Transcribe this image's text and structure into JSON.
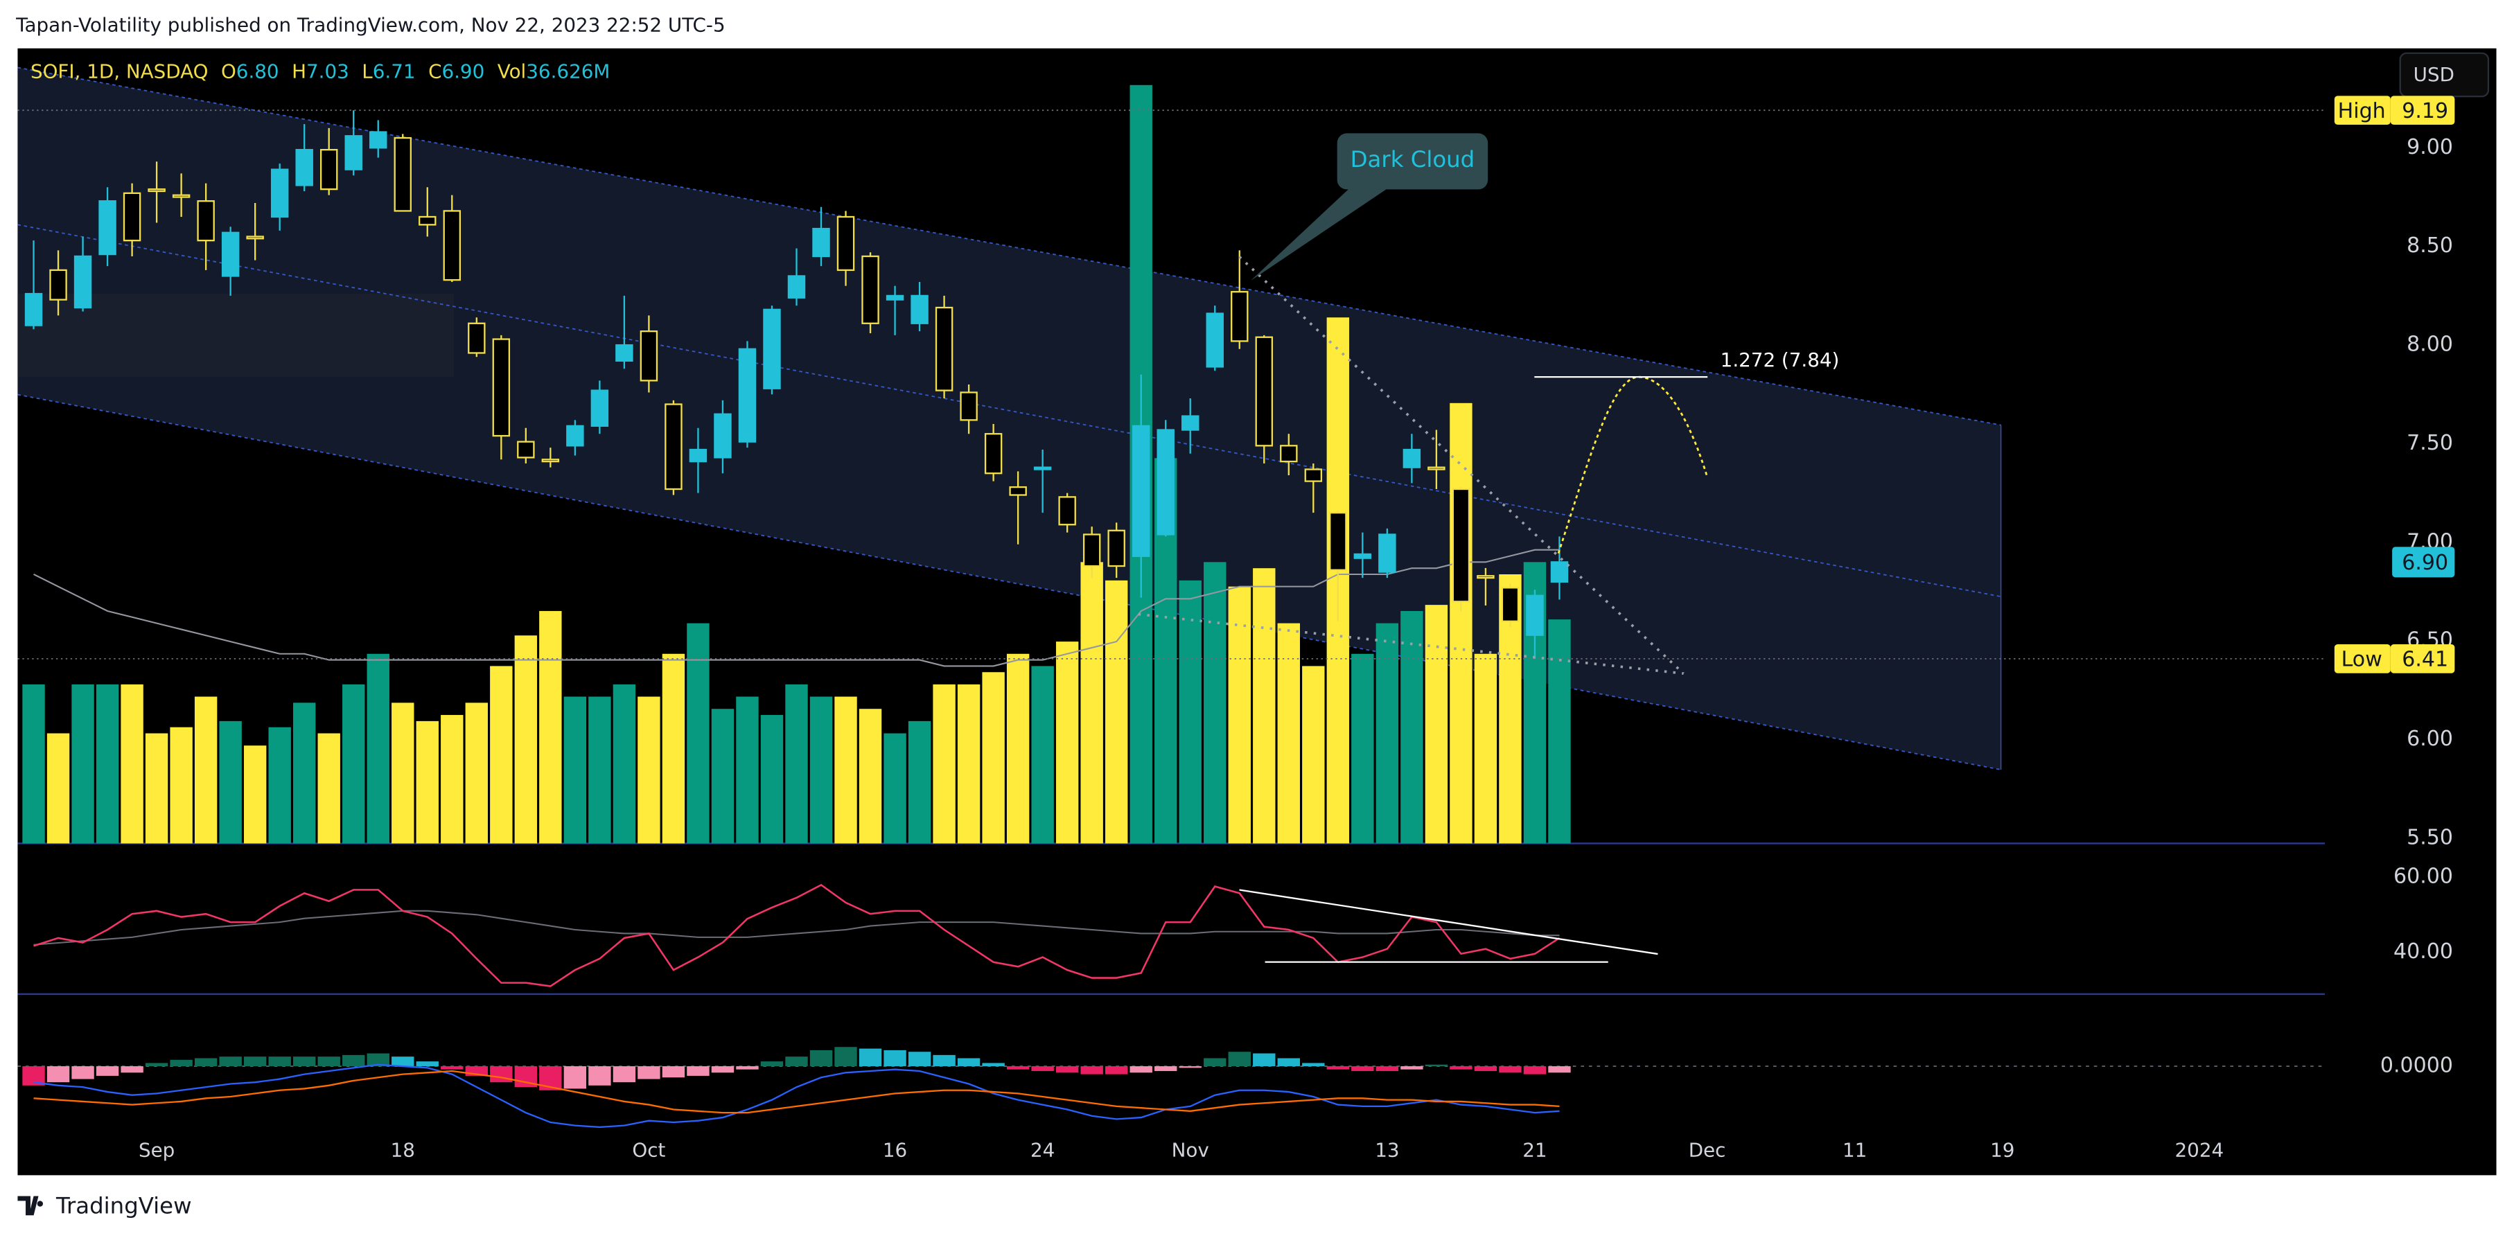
{
  "page": {
    "publisher": "Tapan-Volatility published on TradingView.com, Nov 22, 2023 22:52 UTC-5",
    "currency": "USD",
    "brand": "TradingView"
  },
  "chart_data": [
    {
      "type": "candlestick",
      "legend": {
        "symbol": "SOFI, 1D, NASDAQ",
        "fields": [
          {
            "label": "O",
            "value": "6.80"
          },
          {
            "label": "H",
            "value": "7.03"
          },
          {
            "label": "L",
            "value": "6.71"
          },
          {
            "label": "C",
            "value": "6.90"
          },
          {
            "label": "Vol",
            "value": "36.626M"
          }
        ]
      },
      "x": [
        0,
        1,
        2,
        3,
        4,
        5,
        6,
        7,
        8,
        9,
        10,
        11,
        12,
        13,
        14,
        15,
        16,
        17,
        18,
        19,
        20,
        21,
        22,
        23,
        24,
        25,
        26,
        27,
        28,
        29,
        30,
        31,
        32,
        33,
        34,
        35,
        36,
        37,
        38,
        39,
        40,
        41,
        42,
        43,
        44,
        45,
        46,
        47,
        48,
        49,
        50,
        51,
        52,
        53,
        54,
        55,
        56,
        57,
        58,
        59,
        60,
        61,
        62
      ],
      "open": [
        8.1,
        8.38,
        8.19,
        8.46,
        8.77,
        8.79,
        8.76,
        8.73,
        8.35,
        8.55,
        8.65,
        8.81,
        8.99,
        8.89,
        9.0,
        9.05,
        8.65,
        8.68,
        8.11,
        8.03,
        7.51,
        7.42,
        7.49,
        7.59,
        7.92,
        8.07,
        7.7,
        7.41,
        7.43,
        7.51,
        7.78,
        8.24,
        8.45,
        8.65,
        8.45,
        8.23,
        8.11,
        8.19,
        7.76,
        7.55,
        7.28,
        7.37,
        7.23,
        7.04,
        7.06,
        6.93,
        7.04,
        7.57,
        7.89,
        8.27,
        8.04,
        7.49,
        7.37,
        7.15,
        6.92,
        6.85,
        7.38,
        7.38,
        7.27,
        6.83,
        6.77,
        6.53,
        6.8
      ],
      "high": [
        8.53,
        8.48,
        8.55,
        8.8,
        8.82,
        8.93,
        8.87,
        8.82,
        8.6,
        8.72,
        8.92,
        9.12,
        9.1,
        9.19,
        9.14,
        9.07,
        8.8,
        8.76,
        8.14,
        8.05,
        7.58,
        7.48,
        7.62,
        7.82,
        8.25,
        8.15,
        7.72,
        7.58,
        7.72,
        8.02,
        8.2,
        8.49,
        8.7,
        8.68,
        8.47,
        8.3,
        8.32,
        8.25,
        7.8,
        7.6,
        7.36,
        7.47,
        7.25,
        7.08,
        7.1,
        7.85,
        7.62,
        7.73,
        8.2,
        8.48,
        8.05,
        7.55,
        7.4,
        7.16,
        7.05,
        7.07,
        7.55,
        7.57,
        7.28,
        6.87,
        6.79,
        6.76,
        7.03
      ],
      "low": [
        8.08,
        8.15,
        8.17,
        8.4,
        8.45,
        8.62,
        8.65,
        8.38,
        8.25,
        8.43,
        8.58,
        8.78,
        8.76,
        8.86,
        8.95,
        8.68,
        8.55,
        8.32,
        7.94,
        7.42,
        7.4,
        7.38,
        7.44,
        7.55,
        7.88,
        7.76,
        7.24,
        7.25,
        7.35,
        7.48,
        7.75,
        8.2,
        8.4,
        8.3,
        8.06,
        8.05,
        8.07,
        7.73,
        7.55,
        7.31,
        6.99,
        7.15,
        7.05,
        6.82,
        6.82,
        6.72,
        7.03,
        7.45,
        7.87,
        7.98,
        7.4,
        7.34,
        7.15,
        6.6,
        6.82,
        6.82,
        7.3,
        7.27,
        6.65,
        6.68,
        6.57,
        6.41,
        6.71
      ],
      "close": [
        8.26,
        8.23,
        8.45,
        8.73,
        8.53,
        8.78,
        8.75,
        8.53,
        8.57,
        8.54,
        8.89,
        8.99,
        8.79,
        9.06,
        9.08,
        8.68,
        8.61,
        8.33,
        7.96,
        7.54,
        7.43,
        7.41,
        7.59,
        7.77,
        8.0,
        7.82,
        7.27,
        7.47,
        7.65,
        7.98,
        8.18,
        8.35,
        8.59,
        8.38,
        8.11,
        8.25,
        8.25,
        7.77,
        7.62,
        7.35,
        7.24,
        7.38,
        7.09,
        6.88,
        6.88,
        7.59,
        7.57,
        7.64,
        8.16,
        8.02,
        7.49,
        7.41,
        7.31,
        6.86,
        6.94,
        7.04,
        7.47,
        7.37,
        6.7,
        6.82,
        6.6,
        6.73,
        6.9
      ],
      "up_color": "#22c1d9",
      "down_color": "#f2de4b",
      "volume": [
        26,
        18,
        26,
        26,
        26,
        18,
        19,
        24,
        20,
        16,
        19,
        23,
        18,
        26,
        31,
        23,
        20,
        21,
        23,
        29,
        34,
        38,
        24,
        24,
        26,
        24,
        31,
        36,
        22,
        24,
        21,
        26,
        24,
        24,
        22,
        18,
        20,
        26,
        26,
        28,
        31,
        29,
        33,
        46,
        43,
        124,
        63,
        43,
        46,
        42,
        45,
        36,
        29,
        86,
        31,
        36,
        38,
        39,
        72,
        31,
        44,
        46,
        36.626
      ],
      "volume_ma": [
        44,
        42,
        40,
        38,
        37,
        36,
        35,
        34,
        33,
        32,
        31,
        31,
        30,
        30,
        30,
        30,
        30,
        30,
        30,
        30,
        30,
        30,
        30,
        30,
        30,
        30,
        30,
        30,
        30,
        30,
        30,
        30,
        30,
        30,
        30,
        30,
        30,
        29,
        29,
        29,
        30,
        30,
        31,
        32,
        33,
        38,
        40,
        40,
        41,
        42,
        42,
        42,
        42,
        44,
        44,
        44,
        45,
        45,
        46,
        46,
        47,
        48,
        48
      ],
      "volume_up_color": "#089981",
      "volume_down_color": "#ffeb3b",
      "volume_ma_color": "#9598a1",
      "y2lim": [
        0,
        130
      ],
      "xlim": [
        -0.65,
        93.1
      ],
      "xticks": [
        {
          "value": 5,
          "label": "Sep"
        },
        {
          "value": 15,
          "label": "18"
        },
        {
          "value": 25,
          "label": "Oct"
        },
        {
          "value": 35,
          "label": "16"
        },
        {
          "value": 41,
          "label": "24"
        },
        {
          "value": 47,
          "label": "Nov"
        },
        {
          "value": 55,
          "label": "13"
        },
        {
          "value": 61,
          "label": "21"
        },
        {
          "value": 68,
          "label": "Dec"
        },
        {
          "value": 74,
          "label": "11"
        },
        {
          "value": 80,
          "label": "19"
        },
        {
          "value": 88,
          "label": "2024"
        }
      ],
      "ylim": [
        5.474,
        9.504
      ],
      "yticks": [
        {
          "value": 5.5,
          "label": "5.50"
        },
        {
          "value": 6,
          "label": "6.00"
        },
        {
          "value": 6.5,
          "label": "6.50"
        },
        {
          "value": 7,
          "label": "7.00"
        },
        {
          "value": 7.5,
          "label": "7.50"
        },
        {
          "value": 8,
          "label": "8.00"
        },
        {
          "value": 8.5,
          "label": "8.50"
        },
        {
          "value": 9,
          "label": "9.00"
        }
      ],
      "markers": [
        {
          "label": "High",
          "value": 9.19,
          "value_label": "9.19"
        },
        {
          "label": "Low",
          "value": 6.41,
          "value_label": "6.41"
        }
      ],
      "last_price": {
        "value": 6.9,
        "value_label": "6.90"
      },
      "annotations": [
        {
          "text": "Dark Cloud"
        },
        {
          "text": "1.272 (7.84)"
        }
      ]
    },
    {
      "type": "line",
      "series": [
        {
          "color": "#f23665",
          "values": [
            41.7,
            43.8,
            42.6,
            46,
            50.2,
            51,
            49.4,
            50.2,
            48,
            48,
            52.3,
            55.7,
            53.6,
            56.6,
            56.6,
            51,
            49.4,
            45,
            38.3,
            31.9,
            31.9,
            31,
            35.3,
            38.3,
            43.8,
            45,
            35.3,
            38.7,
            42.6,
            48.9,
            51.9,
            54.5,
            57.9,
            53.2,
            50.2,
            51,
            51,
            46,
            41.7,
            37.4,
            36.2,
            38.7,
            35.3,
            33.2,
            33.2,
            34.5,
            48,
            48,
            57.5,
            55.7,
            46.8,
            46,
            43.8,
            37.4,
            38.7,
            40.9,
            49.4,
            48,
            39.6,
            40.9,
            38.3,
            39.6,
            43.8
          ]
        },
        {
          "color": "#6a6d78",
          "values": [
            42,
            42.5,
            43,
            43.5,
            44,
            45,
            46,
            46.5,
            47,
            47.5,
            48,
            49,
            49.5,
            50,
            50.5,
            51,
            51,
            50.5,
            50,
            49,
            48,
            47,
            46,
            45.5,
            45,
            45,
            44.5,
            44,
            44,
            44,
            44.5,
            45,
            45.5,
            46,
            47,
            47.5,
            48,
            48,
            48,
            48,
            47.5,
            47,
            46.5,
            46,
            45.5,
            45,
            45,
            45,
            45.5,
            45.5,
            45.5,
            45.5,
            45.5,
            45,
            45,
            45,
            45.5,
            46,
            46,
            45.5,
            45,
            44.5,
            44.5
          ]
        }
      ],
      "ylim": [
        28.9,
        68.5
      ],
      "yticks": [
        {
          "value": 60,
          "label": "60.00"
        },
        {
          "value": 40,
          "label": "40.00"
        }
      ]
    },
    {
      "type": "macd",
      "histogram": [
        -0.06,
        -0.05,
        -0.04,
        -0.03,
        -0.02,
        0.01,
        0.02,
        0.025,
        0.03,
        0.03,
        0.03,
        0.03,
        0.03,
        0.035,
        0.04,
        0.03,
        0.015,
        -0.01,
        -0.03,
        -0.05,
        -0.065,
        -0.075,
        -0.07,
        -0.06,
        -0.05,
        -0.04,
        -0.035,
        -0.03,
        -0.02,
        -0.01,
        0.015,
        0.03,
        0.05,
        0.06,
        0.055,
        0.05,
        0.045,
        0.035,
        0.025,
        0.01,
        -0.01,
        -0.015,
        -0.02,
        -0.025,
        -0.025,
        -0.02,
        -0.015,
        -0.005,
        0.025,
        0.045,
        0.04,
        0.025,
        0.01,
        -0.01,
        -0.015,
        -0.015,
        -0.01,
        0.005,
        -0.01,
        -0.015,
        -0.02,
        -0.025,
        -0.02
      ],
      "histogram_colors": {
        "pos_up": "#0f6e57",
        "pos_down": "#1fb5cf",
        "neg_down": "#e91e63",
        "neg_up": "#f48fb1"
      },
      "series": [
        {
          "color": "#2962ff",
          "values": [
            -0.05,
            -0.06,
            -0.065,
            -0.08,
            -0.09,
            -0.085,
            -0.075,
            -0.065,
            -0.055,
            -0.05,
            -0.04,
            -0.025,
            -0.015,
            -0.005,
            0.005,
            0,
            -0.005,
            -0.025,
            -0.065,
            -0.105,
            -0.145,
            -0.175,
            -0.185,
            -0.19,
            -0.185,
            -0.17,
            -0.175,
            -0.17,
            -0.16,
            -0.135,
            -0.105,
            -0.065,
            -0.035,
            -0.02,
            -0.015,
            -0.01,
            -0.015,
            -0.035,
            -0.055,
            -0.085,
            -0.105,
            -0.12,
            -0.135,
            -0.155,
            -0.165,
            -0.16,
            -0.135,
            -0.125,
            -0.09,
            -0.075,
            -0.075,
            -0.08,
            -0.095,
            -0.12,
            -0.125,
            -0.125,
            -0.115,
            -0.105,
            -0.12,
            -0.125,
            -0.135,
            -0.145,
            -0.14
          ]
        },
        {
          "color": "#ff6d00",
          "values": [
            -0.1,
            -0.105,
            -0.11,
            -0.115,
            -0.12,
            -0.115,
            -0.11,
            -0.1,
            -0.095,
            -0.085,
            -0.075,
            -0.07,
            -0.06,
            -0.045,
            -0.035,
            -0.025,
            -0.02,
            -0.015,
            -0.025,
            -0.035,
            -0.05,
            -0.065,
            -0.08,
            -0.095,
            -0.11,
            -0.12,
            -0.135,
            -0.14,
            -0.145,
            -0.145,
            -0.135,
            -0.125,
            -0.115,
            -0.105,
            -0.095,
            -0.085,
            -0.08,
            -0.075,
            -0.075,
            -0.08,
            -0.085,
            -0.095,
            -0.105,
            -0.115,
            -0.125,
            -0.13,
            -0.135,
            -0.14,
            -0.13,
            -0.12,
            -0.115,
            -0.11,
            -0.105,
            -0.1,
            -0.1,
            -0.105,
            -0.105,
            -0.11,
            -0.11,
            -0.115,
            -0.12,
            -0.12,
            -0.125
          ]
        }
      ],
      "ylim": [
        -0.225,
        0.225
      ],
      "yticks": [
        {
          "value": 0,
          "label": "0.0000"
        }
      ]
    }
  ]
}
